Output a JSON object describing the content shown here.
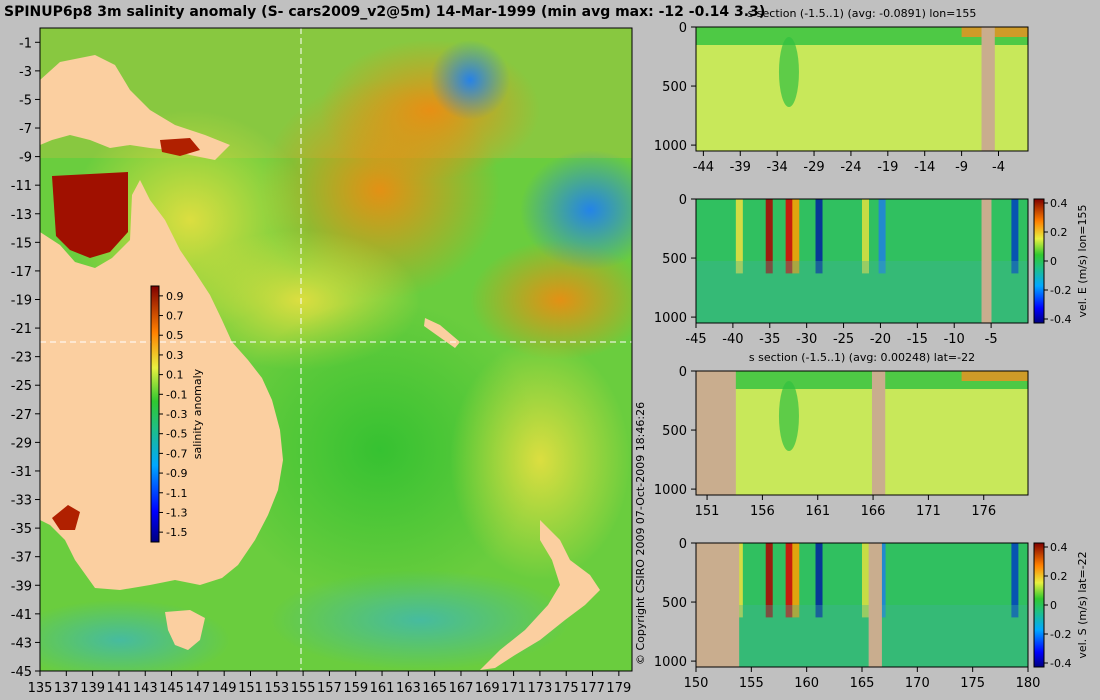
{
  "title": "SPINUP6p8 3m salinity anomaly (S- cars2009_v2@5m) 14-Mar-1999 (min avg max: -12 -0.14 3.3)",
  "copyright": "© Copyright CSIRO 2009   07-Oct-2009 18:46:26",
  "colors": {
    "land": "#fbcfa0",
    "section_land": "#c9ad8e",
    "background": "#c0c0c0"
  },
  "chart_data": [
    {
      "type": "heatmap",
      "name": "map",
      "x_ticks": [
        "135",
        "137",
        "139",
        "141",
        "143",
        "145",
        "147",
        "149",
        "151",
        "153",
        "155",
        "157",
        "159",
        "161",
        "163",
        "165",
        "167",
        "169",
        "171",
        "173",
        "175",
        "177",
        "179"
      ],
      "y_ticks": [
        "-1",
        "-3",
        "-5",
        "-7",
        "-9",
        "-11",
        "-13",
        "-15",
        "-17",
        "-19",
        "-21",
        "-23",
        "-25",
        "-27",
        "-29",
        "-31",
        "-33",
        "-35",
        "-37",
        "-39",
        "-41",
        "-43",
        "-45"
      ],
      "xlim": [
        135,
        180
      ],
      "ylim": [
        -45,
        0
      ],
      "crosshair": {
        "lon": 155,
        "lat": -22
      },
      "colorbar": {
        "label": "salinity anomaly",
        "ticks": [
          "0.9",
          "0.7",
          "0.5",
          "0.3",
          "0.1",
          "-0.1",
          "-0.3",
          "-0.5",
          "-0.7",
          "-0.9",
          "-1.1",
          "-1.3",
          "-1.5"
        ],
        "range": [
          -1.6,
          1.0
        ]
      }
    },
    {
      "type": "heatmap",
      "name": "section-1",
      "title": "s section (-1.5..1) (avg: -0.0891) lon=155",
      "x_ticks": [
        "-44",
        "-39",
        "-34",
        "-29",
        "-24",
        "-19",
        "-14",
        "-9",
        "-4"
      ],
      "y_ticks": [
        "0",
        "500",
        "1000"
      ],
      "xlim": [
        -45,
        0
      ],
      "ylim": [
        0,
        1050
      ]
    },
    {
      "type": "heatmap",
      "name": "section-2",
      "x_ticks": [
        "-45",
        "-40",
        "-35",
        "-30",
        "-25",
        "-20",
        "-15",
        "-10",
        "-5"
      ],
      "y_ticks": [
        "0",
        "500",
        "1000"
      ],
      "xlim": [
        -45,
        0
      ],
      "ylim": [
        0,
        1050
      ],
      "colorbar": {
        "label": "vel. E (m/s) lon=155",
        "ticks": [
          "0.4",
          "0.2",
          "0",
          "-0.2",
          "-0.4"
        ]
      }
    },
    {
      "type": "heatmap",
      "name": "section-3",
      "title": "s section (-1.5..1) (avg: 0.00248) lat=-22",
      "x_ticks": [
        "151",
        "156",
        "161",
        "166",
        "171",
        "176"
      ],
      "y_ticks": [
        "0",
        "500",
        "1000"
      ],
      "xlim": [
        150,
        180
      ],
      "ylim": [
        0,
        1050
      ]
    },
    {
      "type": "heatmap",
      "name": "section-4",
      "x_ticks": [
        "150",
        "155",
        "160",
        "165",
        "170",
        "175",
        "180"
      ],
      "y_ticks": [
        "0",
        "500",
        "1000"
      ],
      "xlim": [
        150,
        180
      ],
      "ylim": [
        0,
        1050
      ],
      "colorbar": {
        "label": "vel. S (m/s) lat=-22",
        "ticks": [
          "0.4",
          "0.2",
          "0",
          "-0.2",
          "-0.4"
        ]
      }
    }
  ]
}
